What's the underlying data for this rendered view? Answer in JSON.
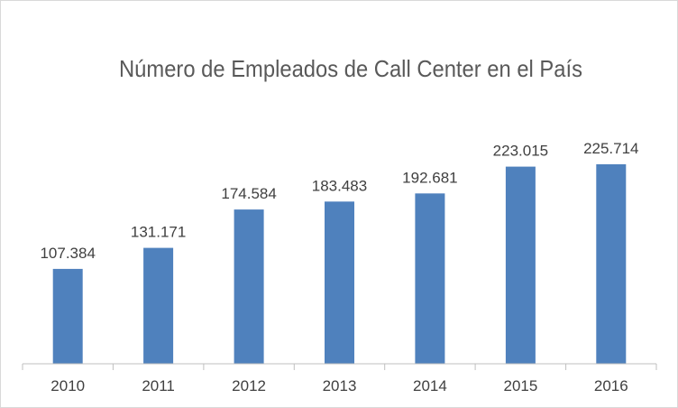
{
  "chart_data": {
    "type": "bar",
    "title": "Número de Empleados de Call Center en el País",
    "categories": [
      "2010",
      "2011",
      "2012",
      "2013",
      "2014",
      "2015",
      "2016"
    ],
    "values": [
      107384,
      131171,
      174584,
      183483,
      192681,
      223015,
      225714
    ],
    "data_labels": [
      "107.384",
      "131.171",
      "174.584",
      "183.483",
      "192.681",
      "223.015",
      "225.714"
    ],
    "xlabel": "",
    "ylabel": "",
    "ylim": [
      0,
      240000
    ],
    "grid": false,
    "legend": "none",
    "colors": {
      "bar": "#4f81bd",
      "axis": "#bfbfbf",
      "text": "#404040",
      "title": "#595959"
    }
  }
}
